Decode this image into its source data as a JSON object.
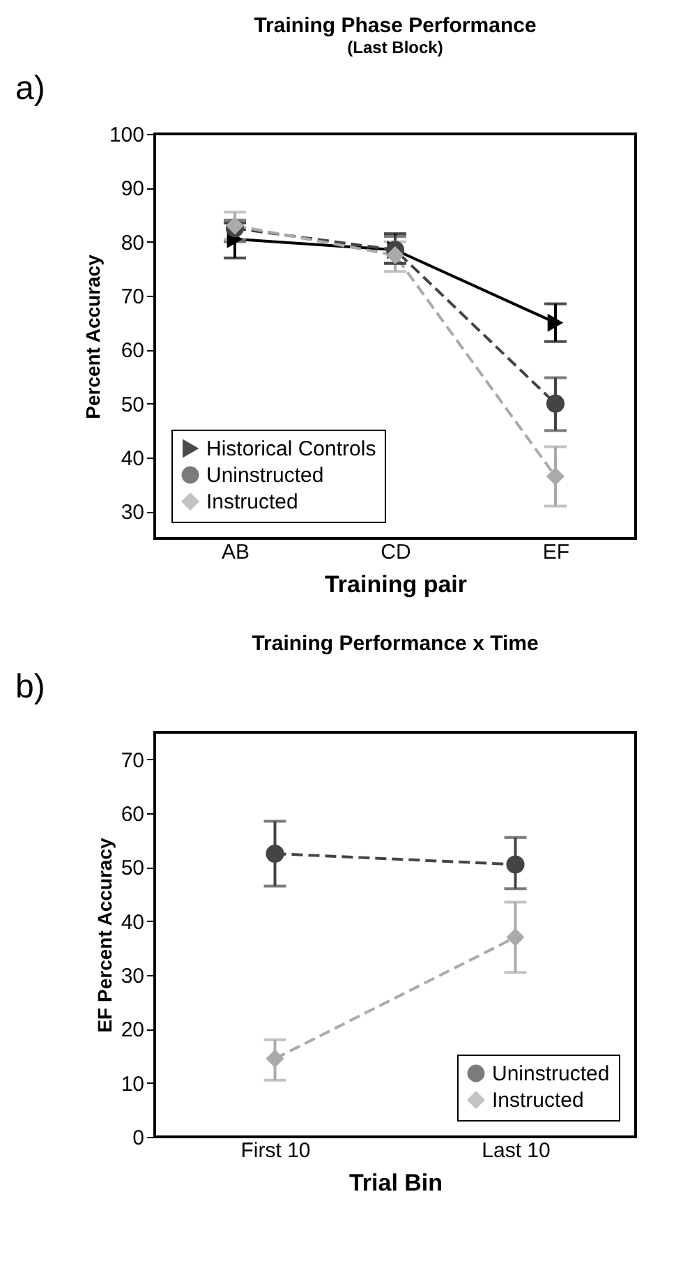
{
  "chart_data": [
    {
      "type": "line",
      "title": "Training Phase Performance",
      "subtitle": "(Last Block)",
      "annotations": [
        "a)"
      ],
      "xlabel": "Training pair",
      "ylabel": "Percent Accuracy",
      "categories": [
        "AB",
        "CD",
        "EF"
      ],
      "ylim": [
        25,
        100
      ],
      "yticks": [
        30,
        40,
        50,
        60,
        70,
        80,
        90,
        100
      ],
      "grid": false,
      "legend": "bottom left",
      "series": [
        {
          "name": "Historical Controls",
          "color": "#000000",
          "marker": "triangle",
          "line_style": "solid",
          "values": [
            80.5,
            78.5,
            65
          ],
          "errors": [
            [
              77,
              83.5
            ],
            [
              76,
              81.5
            ],
            [
              61.5,
              68.5
            ]
          ]
        },
        {
          "name": "Uninstructed",
          "color": "#444444",
          "marker": "circle",
          "line_style": "dashed",
          "values": [
            82.5,
            78.5,
            50
          ],
          "errors": [
            [
              80,
              84
            ],
            [
              76,
              81
            ],
            [
              45,
              54.8
            ]
          ]
        },
        {
          "name": "Instructed",
          "color": "#aaaaaa",
          "marker": "diamond",
          "line_style": "dashed",
          "values": [
            83,
            77.5,
            36.5
          ],
          "errors": [
            [
              80.5,
              85.5
            ],
            [
              74.5,
              80
            ],
            [
              31,
              42
            ]
          ]
        }
      ]
    },
    {
      "type": "line",
      "title": "Training Performance x Time",
      "annotations": [
        "b)"
      ],
      "xlabel": "Trial Bin",
      "ylabel": "EF Percent Accuracy",
      "categories": [
        "First 10",
        "Last 10"
      ],
      "ylim": [
        0,
        75
      ],
      "yticks": [
        0,
        10,
        20,
        30,
        40,
        50,
        60,
        70
      ],
      "grid": false,
      "legend": "bottom right",
      "series": [
        {
          "name": "Uninstructed",
          "color": "#444444",
          "marker": "circle",
          "line_style": "dashed",
          "values": [
            52.5,
            50.5
          ],
          "errors": [
            [
              46.5,
              58.5
            ],
            [
              46,
              55.5
            ]
          ]
        },
        {
          "name": "Instructed",
          "color": "#aaaaaa",
          "marker": "diamond",
          "line_style": "dashed",
          "values": [
            14.5,
            37
          ],
          "errors": [
            [
              10.5,
              18
            ],
            [
              30.5,
              43.5
            ]
          ]
        }
      ]
    }
  ]
}
